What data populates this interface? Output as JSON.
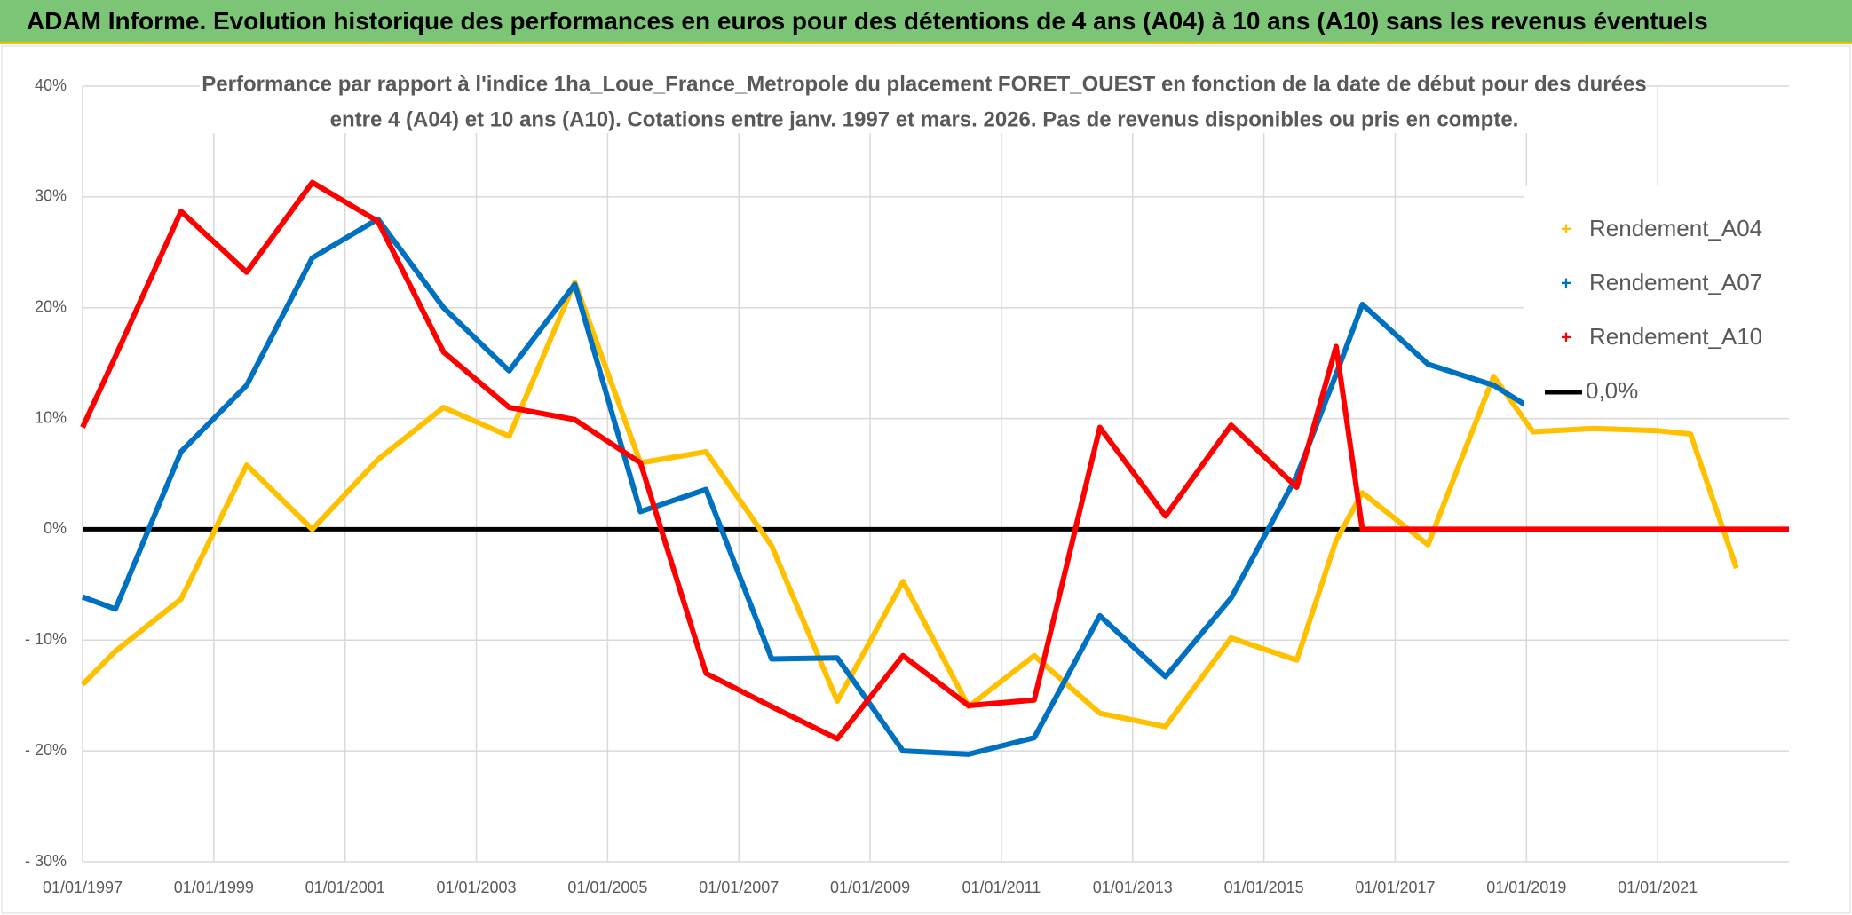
{
  "title": "ADAM Informe. Evolution historique des performances en euros pour des détentions de 4 ans (A04) à 10 ans (A10) sans les revenus éventuels",
  "chart_data": {
    "type": "line",
    "subtitle": [
      "Performance par rapport à l'indice 1ha_Loue_France_Metropole  du placement FORET_OUEST en fonction de la date de début pour des durées",
      "entre 4 (A04) et 10 ans (A10). Cotations entre janv. 1997 et mars. 2026. Pas de revenus disponibles ou pris en compte."
    ],
    "x": [
      1997,
      1997.5,
      1998.5,
      1999.5,
      2000.5,
      2001.5,
      2002.5,
      2003.5,
      2004.5,
      2005.5,
      2006.5,
      2007.5,
      2008.5,
      2009.5,
      2010.5,
      2011.5,
      2012.5,
      2013.5,
      2014.5,
      2015.5,
      2016.1,
      2016.5,
      2017.5,
      2018.5,
      2019.1,
      2020,
      2021,
      2021.5,
      2022.2,
      2023
    ],
    "series": [
      {
        "name": "Rendement_A04",
        "color": "#ffc000",
        "marker": "+",
        "values": [
          -14,
          -11,
          -6.3,
          5.8,
          0,
          6.3,
          11,
          8.4,
          22.3,
          6,
          7,
          -1.5,
          -15.5,
          -4.7,
          -16,
          -11.4,
          -16.6,
          -17.8,
          -9.8,
          -11.8,
          -1,
          3.3,
          -1.4,
          13.8,
          8.8,
          9.1,
          8.9,
          8.6,
          -3.5,
          null
        ]
      },
      {
        "name": "Rendement_A07",
        "color": "#0070c0",
        "marker": "+",
        "values": [
          -6.1,
          -7.2,
          7,
          13,
          24.5,
          28,
          20,
          14.3,
          22.1,
          1.6,
          3.6,
          -11.7,
          -11.6,
          -20,
          -20.3,
          -18.8,
          -7.8,
          -13.3,
          -6.2,
          4.8,
          14,
          20.3,
          14.9,
          13,
          10.8,
          null,
          null,
          null,
          null,
          null
        ]
      },
      {
        "name": "Rendement_A10",
        "color": "#ff0000",
        "marker": "+",
        "values": [
          9.2,
          15.6,
          28.7,
          23.2,
          31.3,
          27.8,
          16,
          11,
          9.9,
          6,
          -13,
          -16,
          -18.9,
          -11.4,
          -15.9,
          -15.4,
          9.2,
          1.2,
          9.4,
          3.8,
          16.5,
          0,
          0,
          0,
          0,
          0,
          0,
          0,
          0,
          0
        ]
      },
      {
        "name": "0,0%",
        "color": "#000000",
        "marker": "line",
        "values": [
          0,
          0,
          0,
          0,
          0,
          0,
          0,
          0,
          0,
          0,
          0,
          0,
          0,
          0,
          0,
          0,
          0,
          0,
          0,
          0,
          0,
          0,
          0,
          0,
          0,
          0,
          0,
          0,
          0,
          0
        ]
      }
    ],
    "xlim": [
      1997,
      2023
    ],
    "xticks": [
      {
        "value": 1997,
        "label": "01/01/1997"
      },
      {
        "value": 1999,
        "label": "01/01/1999"
      },
      {
        "value": 2001,
        "label": "01/01/2001"
      },
      {
        "value": 2003,
        "label": "01/01/2003"
      },
      {
        "value": 2005,
        "label": "01/01/2005"
      },
      {
        "value": 2007,
        "label": "01/01/2007"
      },
      {
        "value": 2009,
        "label": "01/01/2009"
      },
      {
        "value": 2011,
        "label": "01/01/2011"
      },
      {
        "value": 2013,
        "label": "01/01/2013"
      },
      {
        "value": 2015,
        "label": "01/01/2015"
      },
      {
        "value": 2017,
        "label": "01/01/2017"
      },
      {
        "value": 2019,
        "label": "01/01/2019"
      },
      {
        "value": 2021,
        "label": "01/01/2021"
      }
    ],
    "ylim": [
      -30,
      40
    ],
    "yticks": [
      {
        "value": -30,
        "label": "- 30%"
      },
      {
        "value": -20,
        "label": "- 20%"
      },
      {
        "value": -10,
        "label": "- 10%"
      },
      {
        "value": 0,
        "label": "0%"
      },
      {
        "value": 10,
        "label": "10%"
      },
      {
        "value": 20,
        "label": "20%"
      },
      {
        "value": 30,
        "label": "30%"
      },
      {
        "value": 40,
        "label": "40%"
      }
    ],
    "grid": true,
    "legend": "upper right"
  }
}
